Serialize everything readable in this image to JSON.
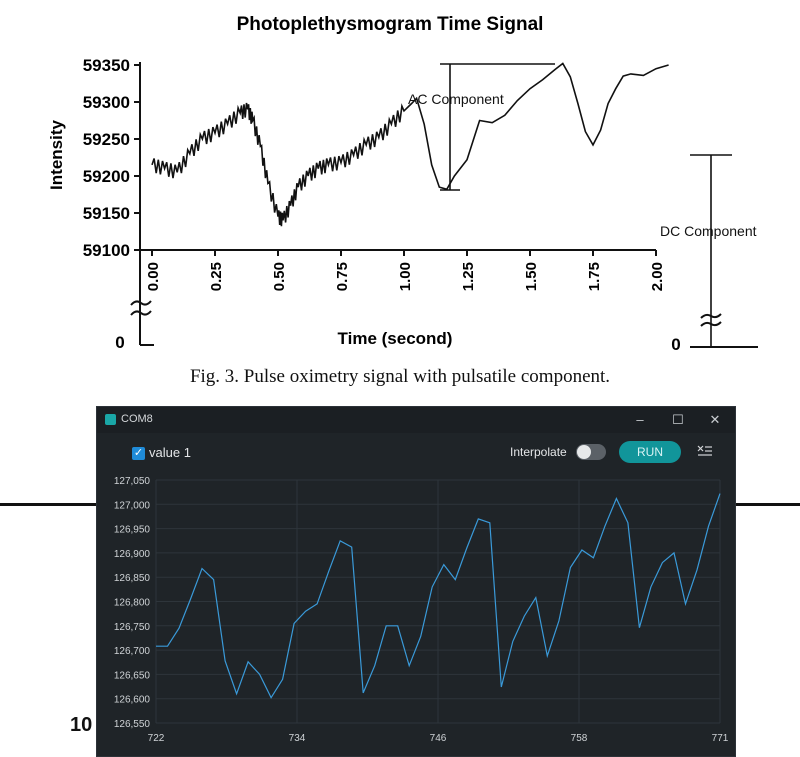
{
  "figure": {
    "caption": "Fig. 3.  Pulse oximetry signal with pulsatile component."
  },
  "partial_text": "10",
  "chart_data": [
    {
      "type": "line",
      "title": "Photoplethysmogram Time Signal",
      "xlabel": "Time (second)",
      "ylabel": "Intensity",
      "xlim": [
        0,
        2.0
      ],
      "ylim": [
        59100,
        59350
      ],
      "x_ticks": [
        "0.00",
        "0.25",
        "0.50",
        "0.75",
        "1.00",
        "1.25",
        "1.50",
        "1.75",
        "2.00"
      ],
      "y_ticks": [
        "59350",
        "59300",
        "59250",
        "59200",
        "59150",
        "59100"
      ],
      "axis_break_label": "0",
      "side_axis_zero_label": "0",
      "annotations": [
        "AC Component",
        "DC Component"
      ],
      "x": [
        0.0,
        0.05,
        0.1,
        0.15,
        0.2,
        0.25,
        0.3,
        0.35,
        0.38,
        0.4,
        0.43,
        0.46,
        0.5,
        0.52,
        0.55,
        0.58,
        0.62,
        0.66,
        0.7,
        0.75,
        0.8,
        0.85,
        0.9,
        0.95,
        1.0,
        1.03,
        1.05,
        1.08,
        1.11,
        1.14,
        1.17,
        1.2,
        1.25,
        1.3,
        1.35,
        1.4,
        1.45,
        1.5,
        1.55,
        1.6,
        1.63,
        1.66,
        1.69,
        1.72,
        1.75,
        1.78,
        1.81,
        1.84,
        1.87,
        1.9,
        1.95,
        2.0,
        2.05
      ],
      "y": [
        59215,
        59210,
        59205,
        59230,
        59250,
        59258,
        59270,
        59285,
        59290,
        59275,
        59240,
        59190,
        59145,
        59140,
        59160,
        59185,
        59200,
        59210,
        59215,
        59218,
        59228,
        59242,
        59252,
        59270,
        59288,
        59298,
        59305,
        59270,
        59215,
        59185,
        59182,
        59200,
        59222,
        59275,
        59272,
        59282,
        59302,
        59318,
        59330,
        59344,
        59352,
        59334,
        59298,
        59260,
        59242,
        59262,
        59298,
        59318,
        59335,
        59338,
        59336,
        59345,
        59350
      ]
    },
    {
      "type": "line",
      "window_title": "COM8",
      "series_label": "value 1",
      "interpolate_label": "Interpolate",
      "run_label": "RUN",
      "x_ticks": [
        "722",
        "734",
        "746",
        "758",
        "771"
      ],
      "y_ticks": [
        "127,050",
        "127,000",
        "126,950",
        "126,900",
        "126,850",
        "126,800",
        "126,750",
        "126,700",
        "126,650",
        "126,600",
        "126,550"
      ],
      "xlim": [
        722,
        771
      ],
      "ylim": [
        126550,
        127050
      ],
      "color": "#3a9ad9",
      "x": [
        722,
        723,
        724,
        725,
        726,
        727,
        728,
        729,
        730,
        731,
        732,
        733,
        734,
        735,
        736,
        737,
        738,
        739,
        740,
        741,
        742,
        743,
        744,
        745,
        746,
        747,
        748,
        749,
        750,
        751,
        752,
        753,
        754,
        755,
        756,
        757,
        758,
        759,
        760,
        761,
        762,
        763,
        764,
        765,
        766,
        767,
        768,
        769,
        770,
        771
      ],
      "y": [
        126708,
        126708,
        126745,
        126805,
        126868,
        126845,
        126678,
        126610,
        126676,
        126650,
        126602,
        126640,
        126755,
        126780,
        126795,
        126862,
        126925,
        126912,
        126612,
        126668,
        126750,
        126750,
        126668,
        126728,
        126830,
        126876,
        126845,
        126910,
        126970,
        126962,
        126624,
        126718,
        126770,
        126808,
        126688,
        126760,
        126870,
        126906,
        126890,
        126955,
        127012,
        126962,
        126746,
        126830,
        126880,
        126900,
        126795,
        126865,
        126955,
        127022
      ]
    }
  ]
}
